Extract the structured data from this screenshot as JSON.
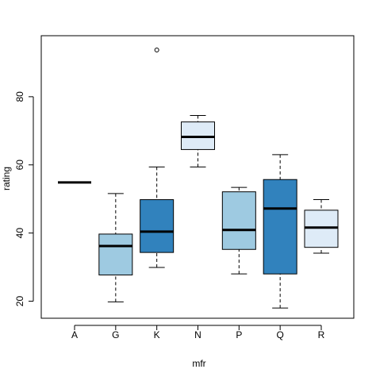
{
  "chart_data": {
    "type": "box",
    "x_label": "mfr",
    "y_label": "rating",
    "categories": [
      "A",
      "G",
      "K",
      "N",
      "P",
      "Q",
      "R"
    ],
    "boxes": [
      {
        "min": 54.85,
        "q1": 54.85,
        "median": 54.85,
        "q3": 54.85,
        "max": 54.85,
        "outliers": []
      },
      {
        "min": 19.8,
        "q1": 27.7,
        "median": 36.2,
        "q3": 39.7,
        "max": 51.6,
        "outliers": []
      },
      {
        "min": 29.9,
        "q1": 34.3,
        "median": 40.4,
        "q3": 49.8,
        "max": 59.4,
        "outliers": [
          93.7
        ]
      },
      {
        "min": 59.4,
        "q1": 64.5,
        "median": 68.2,
        "q3": 72.6,
        "max": 74.5,
        "outliers": []
      },
      {
        "min": 28.0,
        "q1": 35.2,
        "median": 40.9,
        "q3": 52.1,
        "max": 53.4,
        "outliers": []
      },
      {
        "min": 18.0,
        "q1": 28.0,
        "median": 47.2,
        "q3": 55.7,
        "max": 63.0,
        "outliers": []
      },
      {
        "min": 34.1,
        "q1": 35.8,
        "median": 41.6,
        "q3": 46.7,
        "max": 49.8,
        "outliers": []
      }
    ],
    "colors": [
      "#deebf7",
      "#9ecae1",
      "#3182bd",
      "#deebf7",
      "#9ecae1",
      "#3182bd",
      "#deebf7"
    ],
    "ylim": [
      15,
      97.9
    ],
    "yticks": [
      20,
      40,
      60,
      80
    ]
  }
}
